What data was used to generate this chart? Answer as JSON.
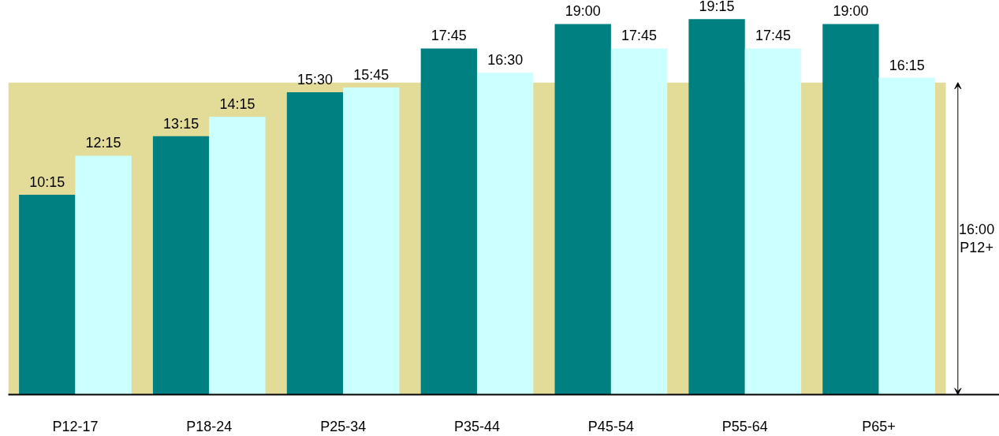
{
  "chart_data": {
    "type": "bar",
    "categories": [
      "P12-17",
      "P18-24",
      "P25-34",
      "P35-44",
      "P45-54",
      "P55-64",
      "P65+"
    ],
    "series": [
      {
        "color": "#008080",
        "values": [
          10.25,
          13.25,
          15.5,
          17.75,
          19.0,
          19.25,
          19.0
        ],
        "value_labels": [
          "10:15",
          "13:15",
          "15:30",
          "17:45",
          "19:00",
          "19:15",
          "19:00"
        ]
      },
      {
        "color": "#ccffff",
        "values": [
          12.25,
          14.25,
          15.75,
          16.5,
          17.75,
          17.75,
          16.25
        ],
        "value_labels": [
          "12:15",
          "14:15",
          "15:45",
          "16:30",
          "17:45",
          "17:45",
          "16:15"
        ]
      }
    ],
    "bands": [
      {
        "axis": "y",
        "from": 0,
        "to": 16,
        "label": "16:00 P12+",
        "color": "#e3db98"
      }
    ],
    "tick_labels": "x",
    "grid": false
  }
}
